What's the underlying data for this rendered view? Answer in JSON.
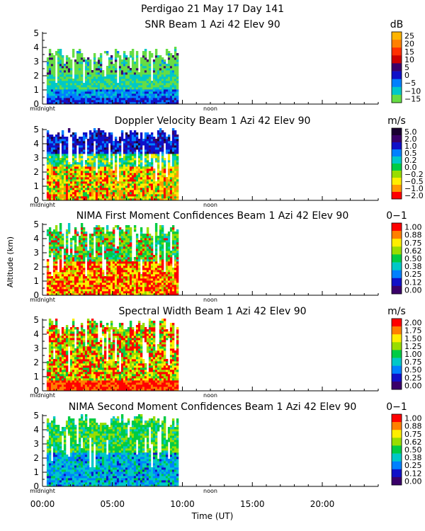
{
  "header": {
    "line1": "Perdigao  21 May 17 Day 141"
  },
  "axes": {
    "ylabel": "Altitude (km)",
    "xlabel": "Time (UT)",
    "y_ticks": [
      "0",
      "1",
      "2",
      "3",
      "4",
      "5"
    ],
    "x_ticks": [
      "00:00",
      "05:00",
      "10:00",
      "15:00",
      "20:00"
    ],
    "midnight_label": "midnight",
    "noon_label": "noon"
  },
  "chart_data": [
    {
      "type": "heatmap",
      "title": "SNR Beam 1 Azi  42 Elev 90",
      "unit": "dB",
      "xlim_hours": [
        0,
        24
      ],
      "ylim_km": [
        0,
        5.1
      ],
      "data_extent_hours": [
        0.3,
        9.6
      ],
      "colorbar_labels": [
        "25",
        "20",
        "15",
        "10",
        "5",
        "0",
        "−5",
        "−10",
        "−15"
      ],
      "colorbar_colors": [
        "#ffb400",
        "#ff8000",
        "#ff3000",
        "#cc0000",
        "#3a006a",
        "#1010c8",
        "#0080ff",
        "#00c8c8",
        "#66dd44"
      ]
    },
    {
      "type": "heatmap",
      "title": "Doppler Velocity Beam 1 Azi  42 Elev 90",
      "unit": "m/s",
      "xlim_hours": [
        0,
        24
      ],
      "ylim_km": [
        0,
        5.1
      ],
      "data_extent_hours": [
        0.3,
        9.6
      ],
      "colorbar_labels": [
        "5.0",
        "2.0",
        "1.0",
        "0.5",
        "0.2",
        "0.0",
        "−0.2",
        "−0.5",
        "−1.0",
        "−2.0"
      ],
      "colorbar_colors": [
        "#1a0030",
        "#3a006a",
        "#1010c8",
        "#0080ff",
        "#00c8c8",
        "#00cc44",
        "#99dd00",
        "#ffee00",
        "#ff9900",
        "#ff0000"
      ]
    },
    {
      "type": "heatmap",
      "title": "NIMA First Moment Confidences Beam 1 Azi  42 Elev 90",
      "unit": "0−1",
      "xlim_hours": [
        0,
        24
      ],
      "ylim_km": [
        0,
        5.1
      ],
      "data_extent_hours": [
        0.3,
        9.6
      ],
      "colorbar_labels": [
        "1.00",
        "0.88",
        "0.75",
        "0.62",
        "0.50",
        "0.38",
        "0.25",
        "0.12",
        "0.00"
      ],
      "colorbar_colors": [
        "#ff0000",
        "#ff8000",
        "#ffee00",
        "#99dd00",
        "#00cc44",
        "#00c8c8",
        "#0080ff",
        "#1010c8",
        "#3a006a"
      ]
    },
    {
      "type": "heatmap",
      "title": "Spectral Width Beam 1 Azi  42 Elev 90",
      "unit": "m/s",
      "xlim_hours": [
        0,
        24
      ],
      "ylim_km": [
        0,
        5.1
      ],
      "data_extent_hours": [
        0.3,
        9.6
      ],
      "colorbar_labels": [
        "2.00",
        "1.75",
        "1.50",
        "1.25",
        "1.00",
        "0.75",
        "0.50",
        "0.25",
        "0.00"
      ],
      "colorbar_colors": [
        "#ff0000",
        "#ff8000",
        "#ffee00",
        "#99dd00",
        "#00cc44",
        "#00c8c8",
        "#0080ff",
        "#1010c8",
        "#3a006a"
      ]
    },
    {
      "type": "heatmap",
      "title": "NIMA Second Moment Confidences Beam 1 Azi  42 Elev 90",
      "unit": "0−1",
      "xlim_hours": [
        0,
        24
      ],
      "ylim_km": [
        0,
        5.1
      ],
      "data_extent_hours": [
        0.3,
        9.6
      ],
      "colorbar_labels": [
        "1.00",
        "0.88",
        "0.75",
        "0.62",
        "0.50",
        "0.38",
        "0.25",
        "0.12",
        "0.00"
      ],
      "colorbar_colors": [
        "#ff0000",
        "#ff8000",
        "#ffee00",
        "#99dd00",
        "#00cc44",
        "#00c8c8",
        "#0080ff",
        "#1010c8",
        "#3a006a"
      ]
    }
  ]
}
